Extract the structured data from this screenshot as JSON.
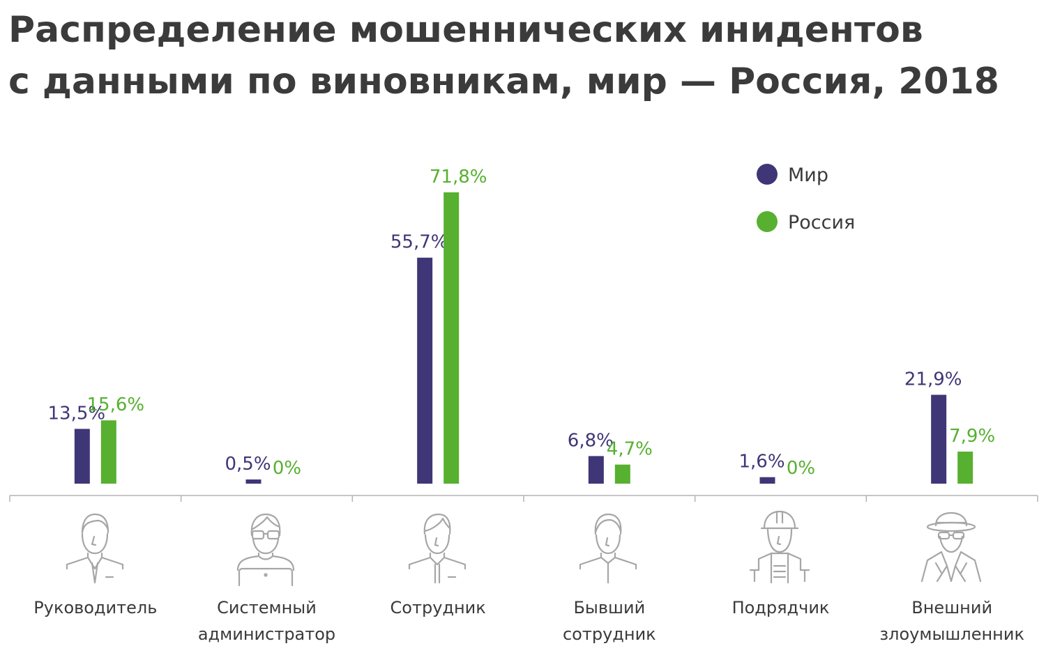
{
  "title": {
    "line1": "Распределение мошеннических инидентов",
    "line2": "с данными по виновникам, мир — Россия, 2018"
  },
  "colors": {
    "world": "#3f3677",
    "russia": "#57b030",
    "axis": "#b3b3b3",
    "icon": "#a6a6a6"
  },
  "chart_data": {
    "type": "bar",
    "title": "Распределение мошеннических инидентов с данными по виновникам, мир — Россия, 2018",
    "xlabel": "",
    "ylabel": "",
    "ylim": [
      0,
      75
    ],
    "grid": false,
    "legend_position": "top-right",
    "categories": [
      {
        "line1": "Руководитель",
        "line2": "",
        "icon": "manager-icon"
      },
      {
        "line1": "Системный",
        "line2": "администратор",
        "icon": "sysadmin-icon"
      },
      {
        "line1": "Сотрудник",
        "line2": "",
        "icon": "employee-icon"
      },
      {
        "line1": "Бывший",
        "line2": "сотрудник",
        "icon": "former-employee-icon"
      },
      {
        "line1": "Подрядчик",
        "line2": "",
        "icon": "contractor-icon"
      },
      {
        "line1": "Внешний",
        "line2": "злоумышленник",
        "icon": "external-attacker-icon"
      }
    ],
    "series": [
      {
        "name": "Мир",
        "values": [
          13.5,
          0.5,
          55.7,
          6.8,
          1.6,
          21.9
        ],
        "labels": [
          "13,5%",
          "0,5%",
          "55,7%",
          "6,8%",
          "1,6%",
          "21,9%"
        ]
      },
      {
        "name": "Россия",
        "values": [
          15.6,
          0,
          71.8,
          4.7,
          0,
          7.9
        ],
        "labels": [
          "15,6%",
          "0%",
          "71,8%",
          "4,7%",
          "0%",
          "7,9%"
        ]
      }
    ]
  }
}
